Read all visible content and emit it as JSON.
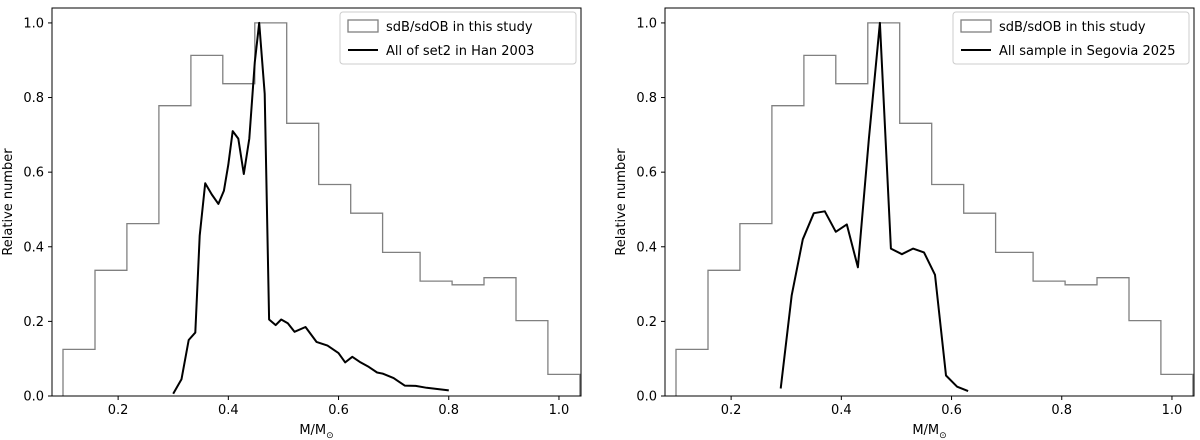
{
  "chart_data": [
    {
      "type": "line",
      "xlabel": "M/M",
      "xlabel_sub": "⊙",
      "ylabel": "Relative number",
      "xlim": [
        0.08,
        1.04
      ],
      "ylim": [
        0,
        1.04
      ],
      "xticks": [
        0.2,
        0.4,
        0.6,
        0.8,
        1.0
      ],
      "yticks": [
        0.0,
        0.2,
        0.4,
        0.6,
        0.8,
        1.0
      ],
      "xtick_labels": [
        "0.2",
        "0.4",
        "0.6",
        "0.8",
        "1.0"
      ],
      "ytick_labels": [
        "0.0",
        "0.2",
        "0.4",
        "0.6",
        "0.8",
        "1.0"
      ],
      "legend_position": "top-right",
      "histogram": {
        "name": "sdB/sdOB in this study",
        "color": "#808080",
        "bin_edges": [
          0.1,
          0.158,
          0.216,
          0.274,
          0.332,
          0.39,
          0.448,
          0.506,
          0.564,
          0.622,
          0.68,
          0.748,
          0.806,
          0.864,
          0.922,
          0.98,
          1.038
        ],
        "values": [
          0.125,
          0.337,
          0.462,
          0.778,
          0.913,
          0.837,
          1.0,
          0.731,
          0.567,
          0.49,
          0.385,
          0.308,
          0.298,
          0.317,
          0.202,
          0.058
        ]
      },
      "series": [
        {
          "name": "All of set2 in Han 2003",
          "color": "#000000",
          "x": [
            0.3,
            0.315,
            0.328,
            0.34,
            0.348,
            0.358,
            0.37,
            0.382,
            0.392,
            0.4,
            0.408,
            0.418,
            0.428,
            0.438,
            0.448,
            0.456,
            0.466,
            0.474,
            0.486,
            0.496,
            0.508,
            0.52,
            0.54,
            0.56,
            0.58,
            0.6,
            0.612,
            0.625,
            0.64,
            0.655,
            0.67,
            0.68,
            0.7,
            0.72,
            0.74,
            0.76,
            0.8
          ],
          "y": [
            0.006,
            0.045,
            0.15,
            0.17,
            0.43,
            0.57,
            0.54,
            0.515,
            0.55,
            0.62,
            0.71,
            0.69,
            0.595,
            0.69,
            0.895,
            1.0,
            0.81,
            0.205,
            0.19,
            0.205,
            0.195,
            0.172,
            0.185,
            0.145,
            0.135,
            0.115,
            0.09,
            0.105,
            0.09,
            0.078,
            0.063,
            0.06,
            0.048,
            0.028,
            0.027,
            0.022,
            0.015
          ]
        }
      ]
    },
    {
      "type": "line",
      "xlabel": "M/M",
      "xlabel_sub": "⊙",
      "ylabel": "Relative number",
      "xlim": [
        0.08,
        1.04
      ],
      "ylim": [
        0,
        1.04
      ],
      "xticks": [
        0.2,
        0.4,
        0.6,
        0.8,
        1.0
      ],
      "yticks": [
        0.0,
        0.2,
        0.4,
        0.6,
        0.8,
        1.0
      ],
      "xtick_labels": [
        "0.2",
        "0.4",
        "0.6",
        "0.8",
        "1.0"
      ],
      "ytick_labels": [
        "0.0",
        "0.2",
        "0.4",
        "0.6",
        "0.8",
        "1.0"
      ],
      "legend_position": "top-right",
      "histogram": {
        "name": "sdB/sdOB in this study",
        "color": "#808080",
        "bin_edges": [
          0.1,
          0.158,
          0.216,
          0.274,
          0.332,
          0.39,
          0.448,
          0.506,
          0.564,
          0.622,
          0.68,
          0.748,
          0.806,
          0.864,
          0.922,
          0.98,
          1.038
        ],
        "values": [
          0.125,
          0.337,
          0.462,
          0.778,
          0.913,
          0.837,
          1.0,
          0.731,
          0.567,
          0.49,
          0.385,
          0.308,
          0.298,
          0.317,
          0.202,
          0.058
        ]
      },
      "series": [
        {
          "name": "All sample in Segovia 2025",
          "color": "#000000",
          "x": [
            0.29,
            0.31,
            0.33,
            0.35,
            0.37,
            0.39,
            0.41,
            0.43,
            0.45,
            0.47,
            0.49,
            0.51,
            0.53,
            0.55,
            0.57,
            0.59,
            0.61,
            0.63
          ],
          "y": [
            0.02,
            0.27,
            0.42,
            0.49,
            0.495,
            0.44,
            0.46,
            0.345,
            0.69,
            1.0,
            0.395,
            0.38,
            0.395,
            0.385,
            0.325,
            0.055,
            0.025,
            0.013
          ]
        }
      ]
    }
  ]
}
